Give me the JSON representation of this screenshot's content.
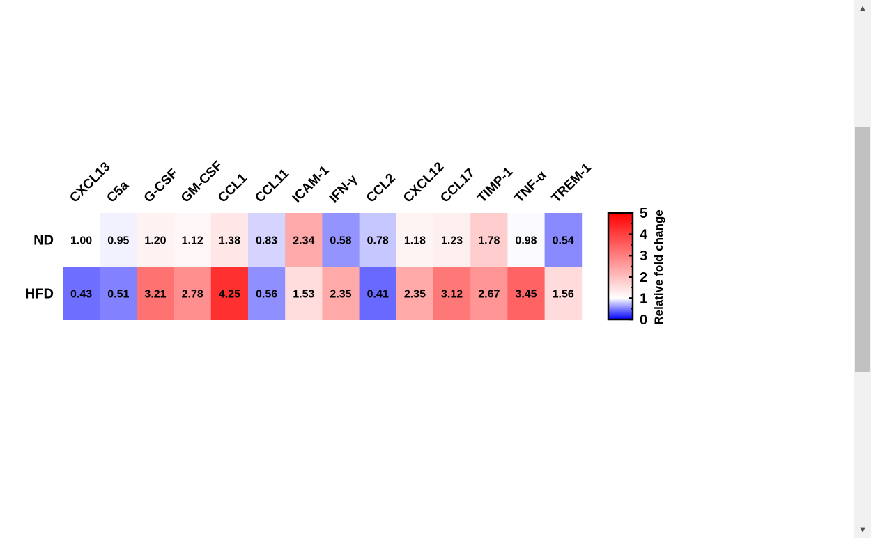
{
  "chart_data": {
    "type": "heatmap",
    "columns": [
      "CXCL13",
      "C5a",
      "G-CSF",
      "GM-CSF",
      "CCL1",
      "CCL11",
      "ICAM-1",
      "IFN-γ",
      "CCL2",
      "CXCL12",
      "CCL17",
      "TIMP-1",
      "TNF-α",
      "TREM-1"
    ],
    "rows": [
      "ND",
      "HFD"
    ],
    "values": [
      [
        1.0,
        0.95,
        1.2,
        1.12,
        1.38,
        0.83,
        2.34,
        0.58,
        0.78,
        1.18,
        1.23,
        1.78,
        0.98,
        0.54
      ],
      [
        0.43,
        0.51,
        3.21,
        2.78,
        4.25,
        0.56,
        1.53,
        2.35,
        0.41,
        2.35,
        3.12,
        2.67,
        3.45,
        1.56
      ]
    ],
    "value_labels": [
      [
        "1.00",
        "0.95",
        "1.20",
        "1.12",
        "1.38",
        "0.83",
        "2.34",
        "0.58",
        "0.78",
        "1.18",
        "1.23",
        "1.78",
        "0.98",
        "0.54"
      ],
      [
        "0.43",
        "0.51",
        "3.21",
        "2.78",
        "4.25",
        "0.56",
        "1.53",
        "2.35",
        "0.41",
        "2.35",
        "3.12",
        "2.67",
        "3.45",
        "1.56"
      ]
    ],
    "colorbar": {
      "title": "Relative fold change",
      "range": [
        0,
        5
      ],
      "center": 1,
      "ticks": [
        "0",
        "1",
        "2",
        "3",
        "4",
        "5"
      ],
      "colors": {
        "low": "#0000ff",
        "mid": "#ffffff",
        "high": "#ff0000"
      }
    },
    "grid": false,
    "legend_position": "right"
  },
  "scrollbar": {
    "up_icon": "▲",
    "down_icon": "▼"
  }
}
